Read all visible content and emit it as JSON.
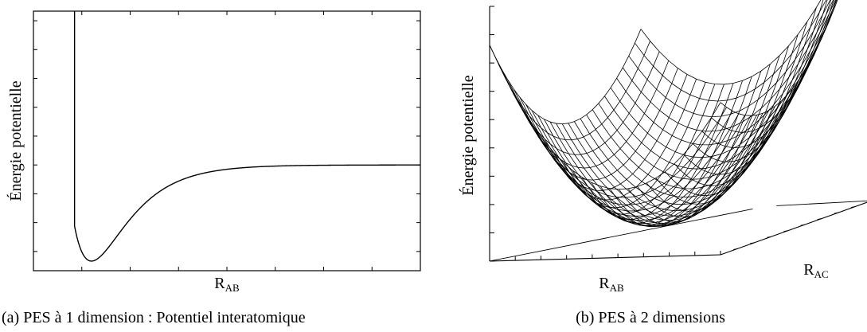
{
  "chart_data": [
    {
      "type": "line",
      "caption": "(a) PES à 1 dimension : Potentiel interatomique",
      "xlabel": "R",
      "xlabel_sub": "AB",
      "ylabel": "Énergie potentielle",
      "xlim": [
        0,
        8
      ],
      "ylim": [
        -1.1,
        1.6
      ],
      "grid": false,
      "x_ticks": [
        0,
        1,
        2,
        3,
        4,
        5,
        6,
        7,
        8
      ],
      "y_ticks": [
        -1.2,
        -0.9,
        -0.6,
        -0.3,
        0,
        0.3,
        0.6,
        0.9,
        1.2,
        1.5
      ],
      "series": [
        {
          "curve": "Morse",
          "x": [
            0.9,
            0.95,
            1.0,
            1.05,
            1.1,
            1.15,
            1.2,
            1.3,
            1.4,
            1.5,
            1.6,
            1.8,
            2.0,
            2.2,
            2.5,
            3.0,
            3.5,
            4.0,
            5.0,
            6.0,
            7.0,
            8.0
          ],
          "y": [
            1.63,
            0.74,
            0.05,
            -0.43,
            -0.77,
            -0.95,
            -1.0,
            -0.91,
            -0.76,
            -0.61,
            -0.47,
            -0.27,
            -0.15,
            -0.08,
            -0.03,
            -0.006,
            -0.001,
            0,
            0,
            0,
            0,
            0
          ]
        }
      ]
    },
    {
      "type": "surface",
      "caption": "(b) PES à 2 dimensions",
      "xlabel": "R",
      "xlabel_sub": "AB",
      "ylabel": "Énergie potentielle",
      "zlabel": "R",
      "zlabel_sub": "AC",
      "mesh_size": [
        25,
        25
      ],
      "grid": false
    }
  ]
}
